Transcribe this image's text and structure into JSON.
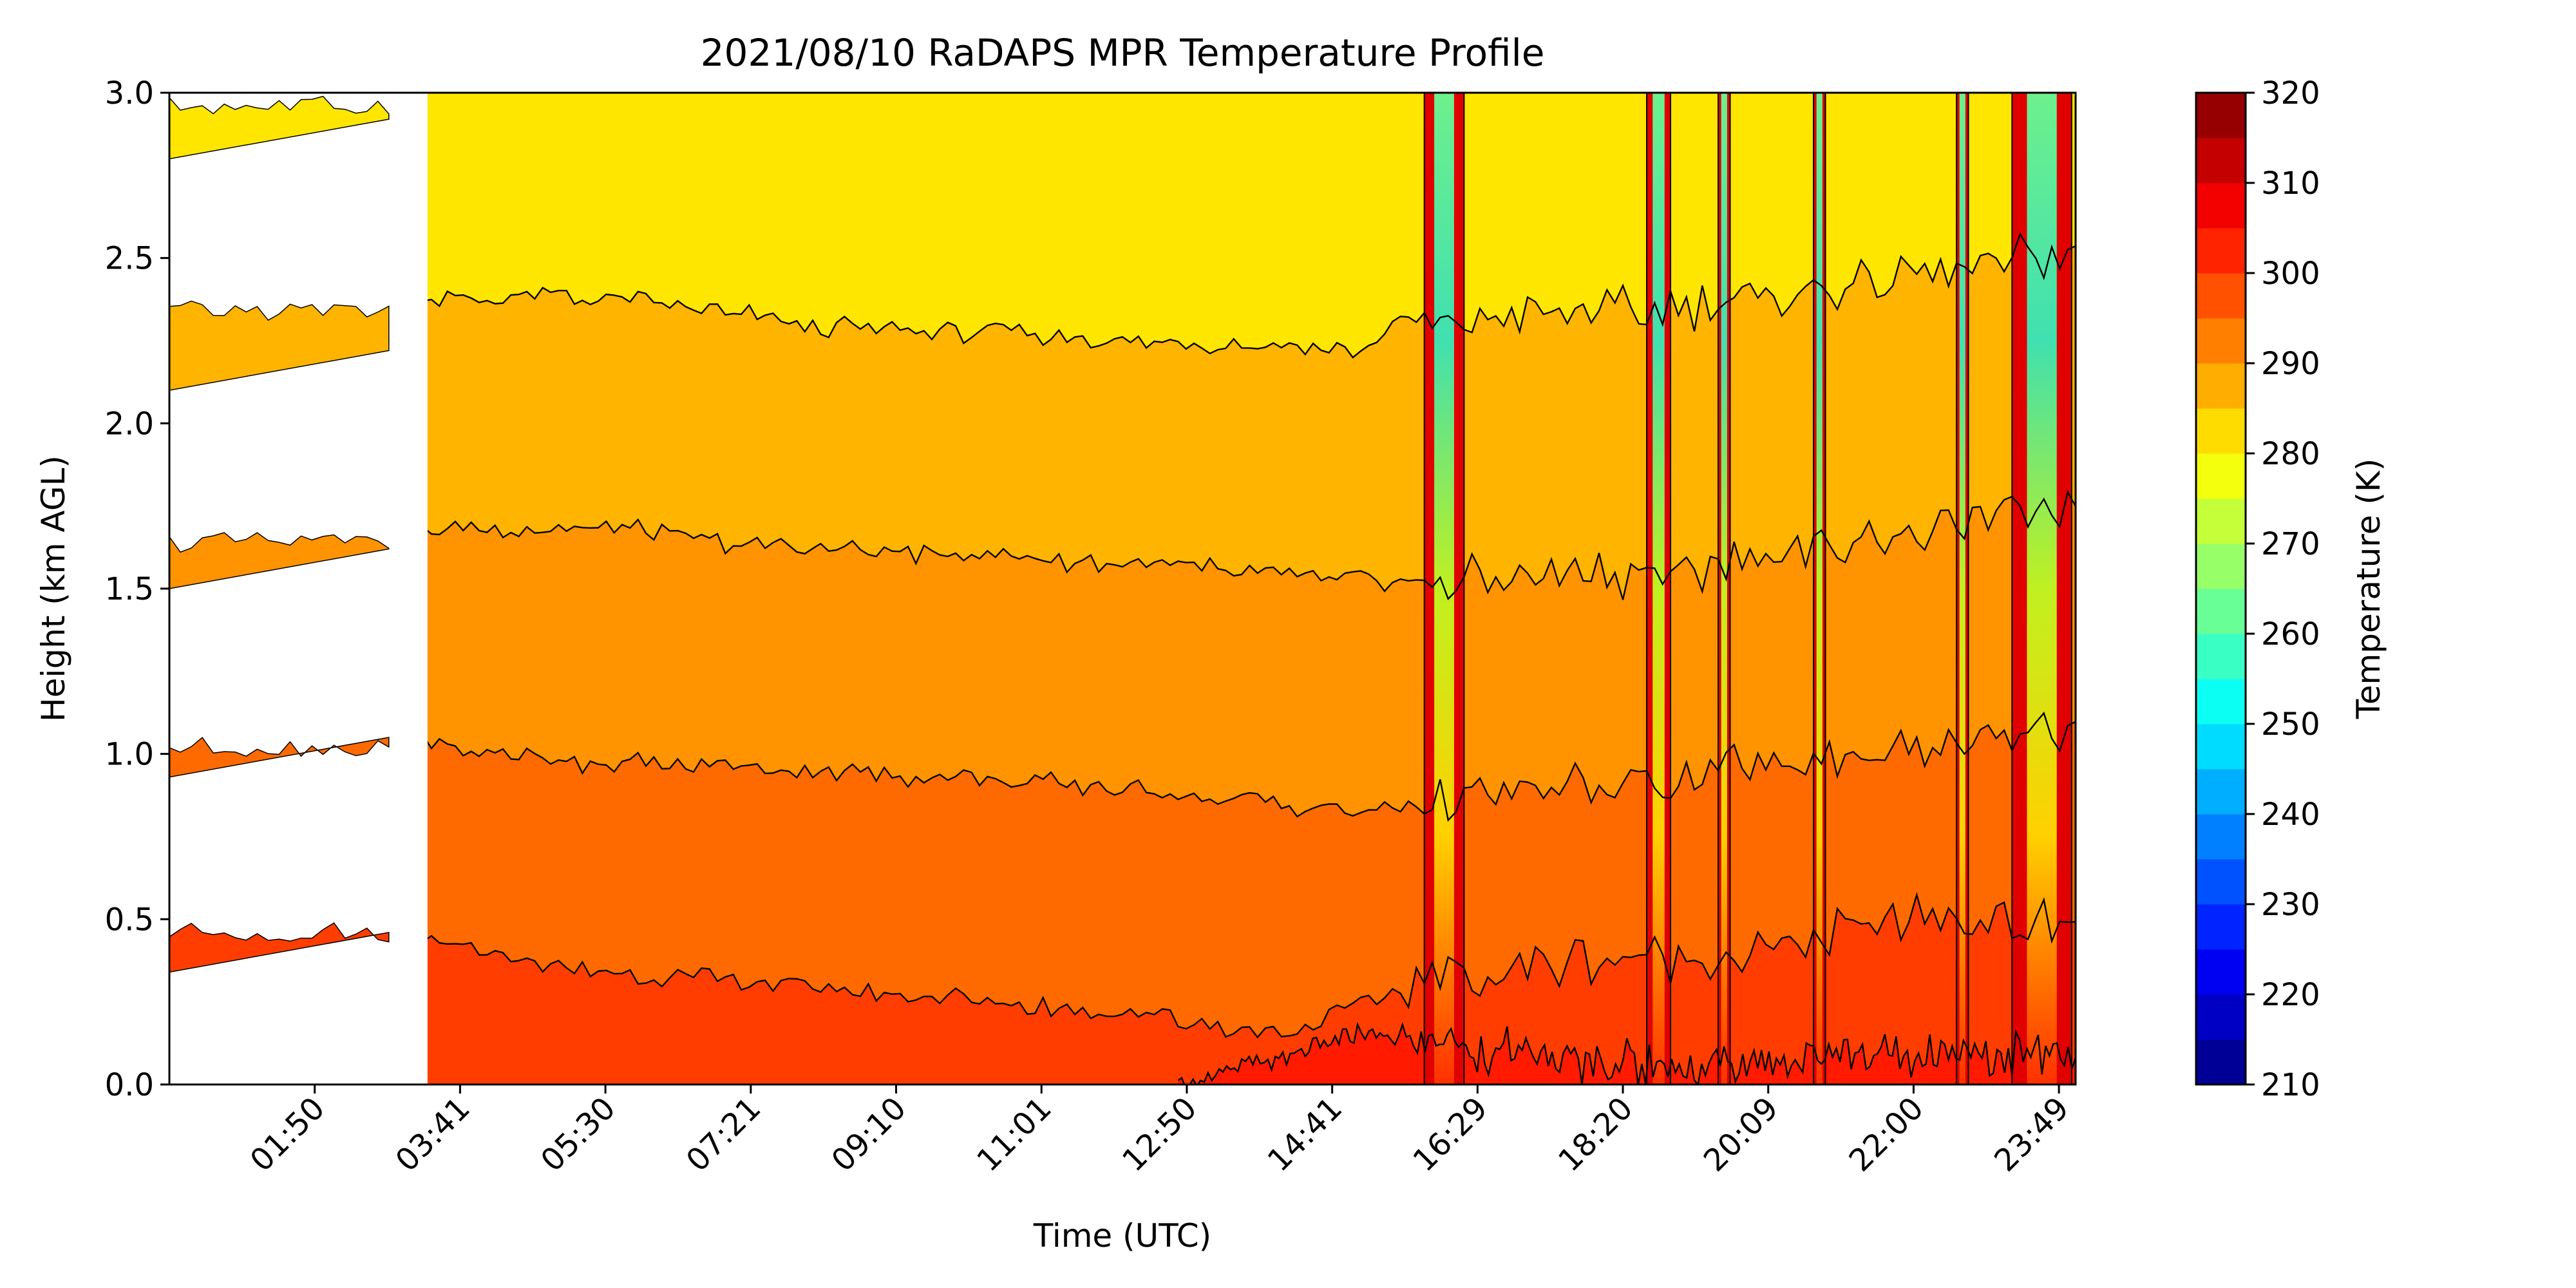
{
  "figure": {
    "title": "2021/08/10 RaDAPS MPR Temperature Profile"
  },
  "chart_data": {
    "type": "heatmap",
    "title": "2021/08/10 RaDAPS MPR Temperature Profile",
    "xlabel": "Time (UTC)",
    "ylabel": "Height (km AGL)",
    "x_tick_labels": [
      "01:50",
      "03:41",
      "05:30",
      "07:21",
      "09:10",
      "11:01",
      "12:50",
      "14:41",
      "16:29",
      "18:20",
      "20:09",
      "22:00",
      "23:49"
    ],
    "x_range_hours": [
      0.0,
      24.0
    ],
    "ylim": [
      0.0,
      3.0
    ],
    "y_ticks": [
      0.0,
      0.5,
      1.0,
      1.5,
      2.0,
      2.5,
      3.0
    ],
    "y_tick_labels": [
      "0.0",
      "0.5",
      "1.0",
      "1.5",
      "2.0",
      "2.5",
      "3.0"
    ],
    "colorbar": {
      "label": "Temperature (K)",
      "range": [
        210,
        320
      ],
      "step": 5,
      "ticks": [
        210,
        220,
        230,
        240,
        250,
        260,
        270,
        280,
        290,
        300,
        310,
        320
      ],
      "colormap": "jet"
    },
    "data_gap_hours": [
      0.0,
      3.25
    ],
    "contour_bands": [
      {
        "level_low": 280,
        "level_high": 285,
        "color": "#ffe600",
        "base_km": 2.3
      },
      {
        "level_low": 285,
        "level_high": 290,
        "color": "#ffb400",
        "base_km": 1.6
      },
      {
        "level_low": 290,
        "level_high": 295,
        "color": "#ff9300",
        "base_km": 1.0
      },
      {
        "level_low": 295,
        "level_high": 300,
        "color": "#ff6a00",
        "base_km": 0.45
      },
      {
        "level_low": 300,
        "level_high": 305,
        "color": "#ff3d00",
        "base_km": 0.0
      }
    ],
    "contour_lines_km": {
      "t285": [
        [
          0.0,
          2.34
        ],
        [
          3.3,
          2.38
        ],
        [
          5.5,
          2.38
        ],
        [
          8.0,
          2.3
        ],
        [
          12.0,
          2.25
        ],
        [
          15.0,
          2.22
        ],
        [
          15.5,
          2.3
        ],
        [
          19.0,
          2.35
        ],
        [
          22.0,
          2.45
        ],
        [
          24.0,
          2.52
        ]
      ],
      "t290": [
        [
          0.0,
          1.64
        ],
        [
          3.3,
          1.68
        ],
        [
          5.5,
          1.68
        ],
        [
          8.0,
          1.62
        ],
        [
          12.0,
          1.58
        ],
        [
          15.0,
          1.52
        ],
        [
          16.0,
          1.52
        ],
        [
          19.0,
          1.56
        ],
        [
          22.0,
          1.67
        ],
        [
          24.0,
          1.76
        ]
      ],
      "t295": [
        [
          0.0,
          1.04
        ],
        [
          3.3,
          1.03
        ],
        [
          5.0,
          0.98
        ],
        [
          8.0,
          0.95
        ],
        [
          12.0,
          0.9
        ],
        [
          15.0,
          0.82
        ],
        [
          16.0,
          0.86
        ],
        [
          19.0,
          0.92
        ],
        [
          22.0,
          1.02
        ],
        [
          24.0,
          1.06
        ]
      ],
      "t300": [
        [
          0.0,
          0.48
        ],
        [
          3.3,
          0.44
        ],
        [
          5.0,
          0.35
        ],
        [
          12.0,
          0.22
        ],
        [
          14.0,
          0.15
        ],
        [
          16.0,
          0.33
        ],
        [
          18.0,
          0.38
        ],
        [
          20.0,
          0.4
        ],
        [
          22.0,
          0.5
        ],
        [
          24.0,
          0.48
        ]
      ],
      "t305": [
        [
          12.7,
          0.0
        ],
        [
          14.0,
          0.08
        ],
        [
          15.0,
          0.15
        ],
        [
          16.0,
          0.13
        ],
        [
          17.5,
          0.07
        ],
        [
          19.0,
          0.06
        ],
        [
          21.0,
          0.08
        ],
        [
          22.5,
          0.1
        ],
        [
          24.0,
          0.08
        ]
      ]
    },
    "precipitation_events_hours": [
      {
        "start": 15.8,
        "end": 16.3
      },
      {
        "start": 18.6,
        "end": 18.9
      },
      {
        "start": 19.5,
        "end": 19.65
      },
      {
        "start": 20.7,
        "end": 20.85
      },
      {
        "start": 22.5,
        "end": 22.65
      },
      {
        "start": 23.2,
        "end": 23.95
      }
    ]
  }
}
